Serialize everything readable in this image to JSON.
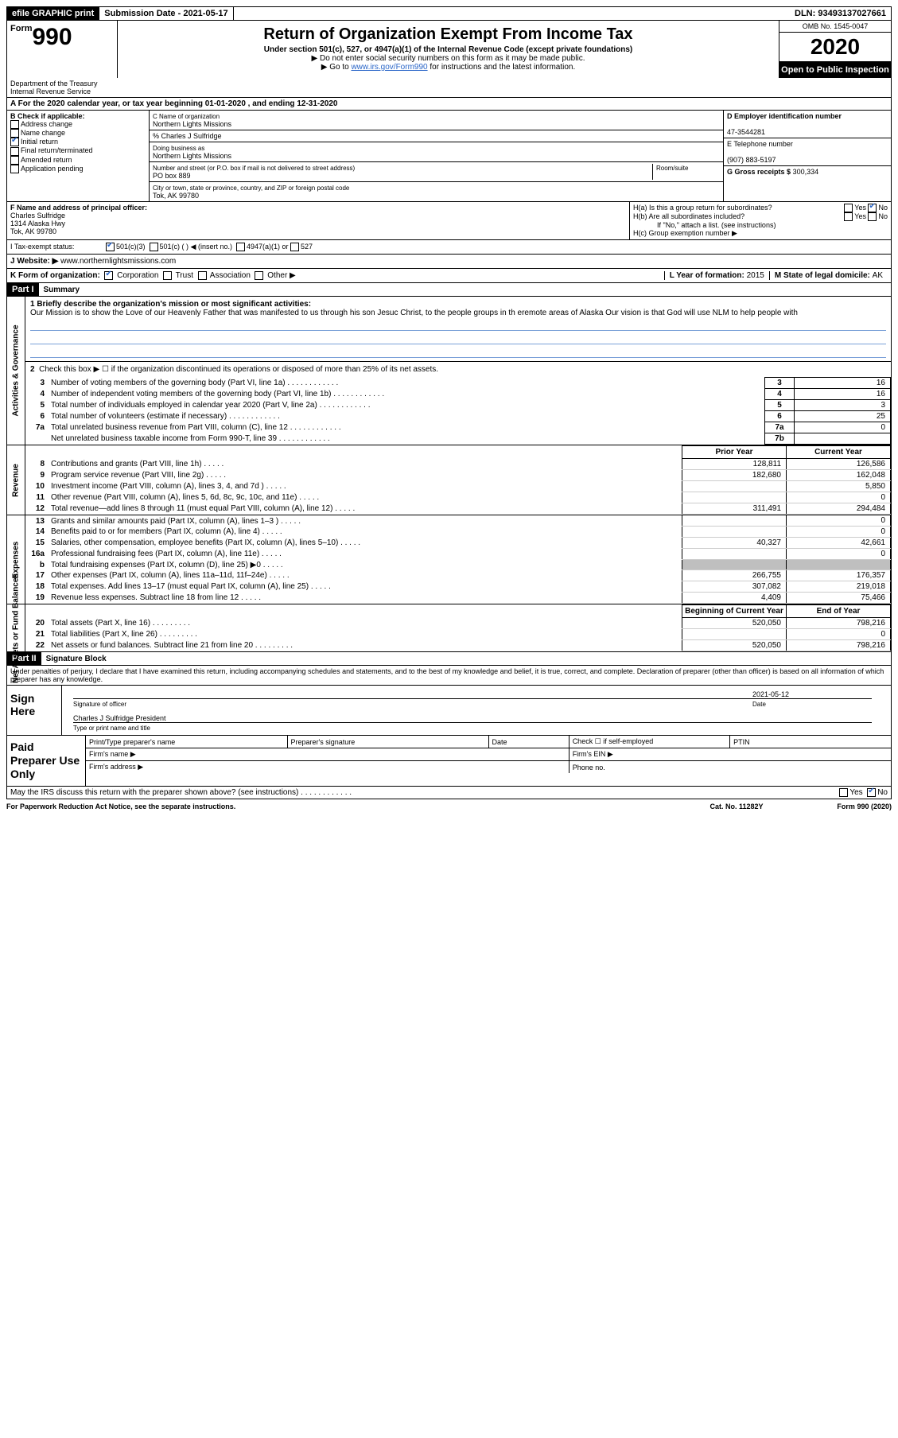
{
  "topbar": {
    "efile": "efile GRAPHIC print",
    "submission_label": "Submission Date - ",
    "submission_date": "2021-05-17",
    "dln_label": "DLN: ",
    "dln": "93493137027661"
  },
  "header": {
    "form_prefix": "Form",
    "form_number": "990",
    "title": "Return of Organization Exempt From Income Tax",
    "subtitle": "Under section 501(c), 527, or 4947(a)(1) of the Internal Revenue Code (except private foundations)",
    "note1": "▶ Do not enter social security numbers on this form as it may be made public.",
    "note2_pre": "▶ Go to ",
    "note2_link": "www.irs.gov/Form990",
    "note2_post": " for instructions and the latest information.",
    "omb": "OMB No. 1545-0047",
    "year": "2020",
    "inspect": "Open to Public Inspection",
    "dept1": "Department of the Treasury",
    "dept2": "Internal Revenue Service"
  },
  "section_a": "A   For the 2020 calendar year, or tax year beginning 01-01-2020    , and ending 12-31-2020",
  "box_b": {
    "title": "B Check if applicable:",
    "items": [
      "Address change",
      "Name change",
      "Initial return",
      "Final return/terminated",
      "Amended return",
      "Application pending"
    ],
    "checked_index": 2
  },
  "box_c": {
    "name_label": "C Name of organization",
    "name": "Northern Lights Missions",
    "care_of": "% Charles J Sulfridge",
    "dba_label": "Doing business as",
    "dba": "Northern Lights Missions",
    "street_label": "Number and street (or P.O. box if mail is not delivered to street address)",
    "room_label": "Room/suite",
    "street": "PO box 889",
    "city_label": "City or town, state or province, country, and ZIP or foreign postal code",
    "city": "Tok, AK  99780"
  },
  "box_d": {
    "label": "D Employer identification number",
    "value": "47-3544281"
  },
  "box_e": {
    "label": "E Telephone number",
    "value": "(907) 883-5197"
  },
  "box_g": {
    "label": "G Gross receipts $",
    "value": "300,334"
  },
  "box_f": {
    "label": "F  Name and address of principal officer:",
    "name": "Charles Sulfridge",
    "addr1": "1314 Alaska Hwy",
    "addr2": "Tok, AK  99780"
  },
  "box_h": {
    "ha": "H(a)  Is this a group return for subordinates?",
    "hb": "H(b)  Are all subordinates included?",
    "hb_note": "If \"No,\" attach a list. (see instructions)",
    "hc": "H(c)  Group exemption number ▶",
    "yes": "Yes",
    "no": "No"
  },
  "tax_status": {
    "label": "I   Tax-exempt status:",
    "opt1": "501(c)(3)",
    "opt2": "501(c) (   ) ◀ (insert no.)",
    "opt3": "4947(a)(1) or",
    "opt4": "527"
  },
  "row_j": {
    "label": "J    Website: ▶",
    "value": "www.northernlightsmissions.com"
  },
  "row_k": {
    "label": "K Form of organization:",
    "opts": [
      "Corporation",
      "Trust",
      "Association",
      "Other ▶"
    ],
    "checked": 0,
    "l_label": "L Year of formation: ",
    "l_value": "2015",
    "m_label": "M State of legal domicile: ",
    "m_value": "AK"
  },
  "part1": {
    "header": "Part I",
    "title": "Summary",
    "q1_label": "1  Briefly describe the organization's mission or most significant activities:",
    "q1_text": "Our Mission is to show the Love of our Heavenly Father that was manifested to us through his son Jesuc Christ, to the people groups in th eremote areas of Alaska Our vision is that God will use NLM to help people with",
    "q2": "Check this box ▶ ☐  if the organization discontinued its operations or disposed of more than 25% of its net assets.",
    "gov_side": "Activities & Governance",
    "rev_side": "Revenue",
    "exp_side": "Expenses",
    "net_side": "Net Assets or Fund Balances",
    "gov_lines": [
      {
        "n": "3",
        "text": "Number of voting members of the governing body (Part VI, line 1a)",
        "box": "3",
        "val": "16"
      },
      {
        "n": "4",
        "text": "Number of independent voting members of the governing body (Part VI, line 1b)",
        "box": "4",
        "val": "16"
      },
      {
        "n": "5",
        "text": "Total number of individuals employed in calendar year 2020 (Part V, line 2a)",
        "box": "5",
        "val": "3"
      },
      {
        "n": "6",
        "text": "Total number of volunteers (estimate if necessary)",
        "box": "6",
        "val": "25"
      },
      {
        "n": "7a",
        "text": "Total unrelated business revenue from Part VIII, column (C), line 12",
        "box": "7a",
        "val": "0"
      },
      {
        "n": "",
        "text": "Net unrelated business taxable income from Form 990-T, line 39",
        "box": "7b",
        "val": ""
      }
    ],
    "prior_hdr": "Prior Year",
    "curr_hdr": "Current Year",
    "rev_lines": [
      {
        "n": "8",
        "text": "Contributions and grants (Part VIII, line 1h)",
        "prior": "128,811",
        "curr": "126,586"
      },
      {
        "n": "9",
        "text": "Program service revenue (Part VIII, line 2g)",
        "prior": "182,680",
        "curr": "162,048"
      },
      {
        "n": "10",
        "text": "Investment income (Part VIII, column (A), lines 3, 4, and 7d )",
        "prior": "",
        "curr": "5,850"
      },
      {
        "n": "11",
        "text": "Other revenue (Part VIII, column (A), lines 5, 6d, 8c, 9c, 10c, and 11e)",
        "prior": "",
        "curr": "0"
      },
      {
        "n": "12",
        "text": "Total revenue—add lines 8 through 11 (must equal Part VIII, column (A), line 12)",
        "prior": "311,491",
        "curr": "294,484"
      }
    ],
    "exp_lines": [
      {
        "n": "13",
        "text": "Grants and similar amounts paid (Part IX, column (A), lines 1–3 )",
        "prior": "",
        "curr": "0"
      },
      {
        "n": "14",
        "text": "Benefits paid to or for members (Part IX, column (A), line 4)",
        "prior": "",
        "curr": "0"
      },
      {
        "n": "15",
        "text": "Salaries, other compensation, employee benefits (Part IX, column (A), lines 5–10)",
        "prior": "40,327",
        "curr": "42,661"
      },
      {
        "n": "16a",
        "text": "Professional fundraising fees (Part IX, column (A), line 11e)",
        "prior": "",
        "curr": "0"
      },
      {
        "n": "b",
        "text": "Total fundraising expenses (Part IX, column (D), line 25) ▶0",
        "prior": "SHADED",
        "curr": "SHADED"
      },
      {
        "n": "17",
        "text": "Other expenses (Part IX, column (A), lines 11a–11d, 11f–24e)",
        "prior": "266,755",
        "curr": "176,357"
      },
      {
        "n": "18",
        "text": "Total expenses. Add lines 13–17 (must equal Part IX, column (A), line 25)",
        "prior": "307,082",
        "curr": "219,018"
      },
      {
        "n": "19",
        "text": "Revenue less expenses. Subtract line 18 from line 12",
        "prior": "4,409",
        "curr": "75,466"
      }
    ],
    "net_hdr_prior": "Beginning of Current Year",
    "net_hdr_curr": "End of Year",
    "net_lines": [
      {
        "n": "20",
        "text": "Total assets (Part X, line 16)",
        "prior": "520,050",
        "curr": "798,216"
      },
      {
        "n": "21",
        "text": "Total liabilities (Part X, line 26)",
        "prior": "",
        "curr": "0"
      },
      {
        "n": "22",
        "text": "Net assets or fund balances. Subtract line 21 from line 20",
        "prior": "520,050",
        "curr": "798,216"
      }
    ]
  },
  "part2": {
    "header": "Part II",
    "title": "Signature Block",
    "penalty": "Under penalties of perjury, I declare that I have examined this return, including accompanying schedules and statements, and to the best of my knowledge and belief, it is true, correct, and complete. Declaration of preparer (other than officer) is based on all information of which preparer has any knowledge.",
    "sign_here": "Sign Here",
    "sig_officer_cap": "Signature of officer",
    "sig_date_cap": "Date",
    "sig_date": "2021-05-12",
    "sig_name": "Charles J Sulfridge President",
    "sig_name_cap": "Type or print name and title",
    "paid_label": "Paid Preparer Use Only",
    "prep_name_hdr": "Print/Type preparer's name",
    "prep_sig_hdr": "Preparer's signature",
    "prep_date_hdr": "Date",
    "prep_check": "Check ☐ if self-employed",
    "prep_ptin": "PTIN",
    "firm_name": "Firm's name    ▶",
    "firm_ein": "Firm's EIN ▶",
    "firm_addr": "Firm's address ▶",
    "firm_phone": "Phone no.",
    "discuss": "May the IRS discuss this return with the preparer shown above? (see instructions)",
    "yes": "Yes",
    "no": "No"
  },
  "footer": {
    "paperwork": "For Paperwork Reduction Act Notice, see the separate instructions.",
    "cat": "Cat. No. 11282Y",
    "form": "Form 990 (2020)"
  }
}
